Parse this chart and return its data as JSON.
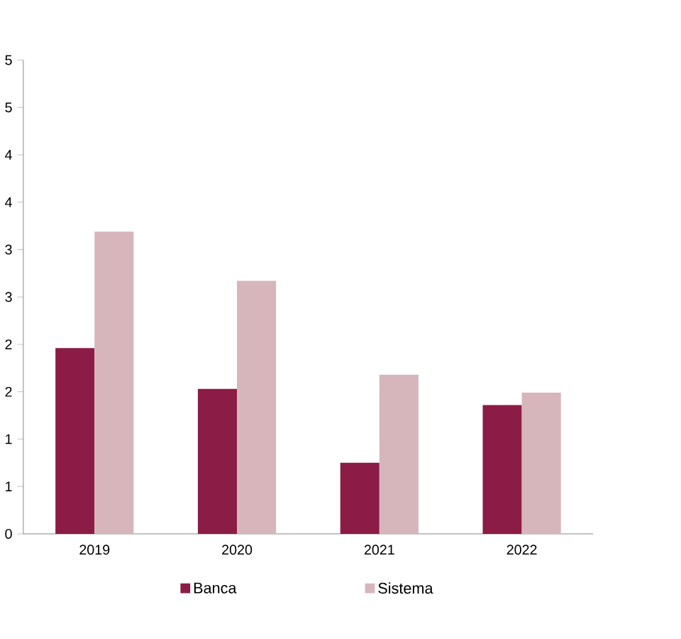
{
  "chart_data": {
    "type": "bar",
    "categories": [
      "2019",
      "2020",
      "2021",
      "2022"
    ],
    "series": [
      {
        "name": "Banca",
        "color": "#8b1c46",
        "values": [
          1.96,
          1.53,
          0.75,
          1.36
        ]
      },
      {
        "name": "Sistema",
        "color": "#d6b6bb",
        "values": [
          3.19,
          2.67,
          1.68,
          1.49
        ]
      }
    ],
    "ylim": [
      0,
      5
    ],
    "yticks": [
      0,
      {
        "value": 0.5,
        "label": "1"
      },
      1,
      {
        "value": 1.5,
        "label": "2"
      },
      2,
      {
        "value": 2.5,
        "label": "3"
      },
      3,
      {
        "value": 3.5,
        "label": "4"
      },
      4,
      {
        "value": 4.5,
        "label": "5"
      },
      5
    ],
    "grid": false,
    "legend": "bottom"
  }
}
